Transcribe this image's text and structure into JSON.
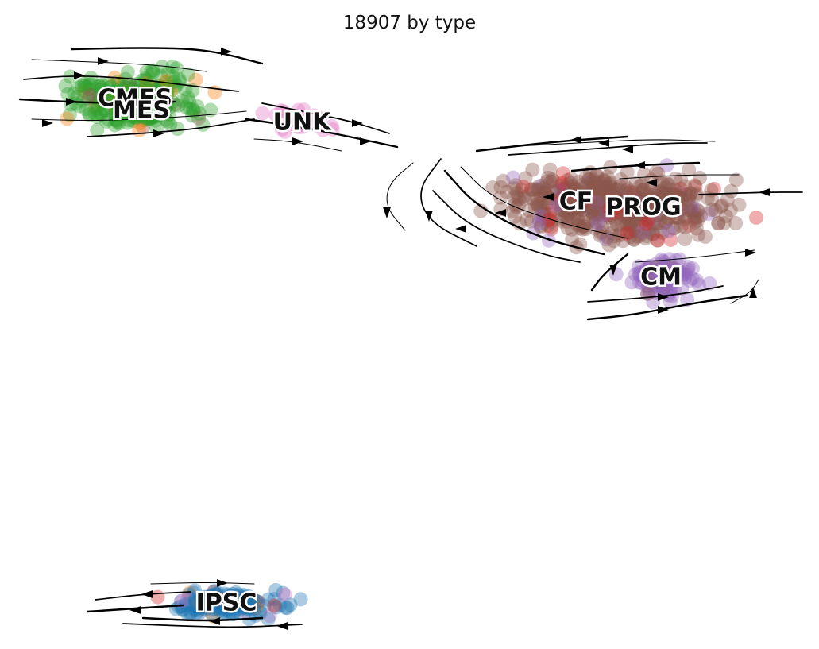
{
  "title": "18907 by type",
  "chart_data": {
    "type": "scatter",
    "title": "18907 by type",
    "subtype": "embedding scatter with velocity streamlines",
    "axes_visible": false,
    "grid": false,
    "legend": "on-data",
    "clusters": [
      {
        "name": "CMES",
        "color": "#2ca02c",
        "center": [
          170,
          125
        ],
        "extent": [
          130,
          55
        ],
        "mix_colors": [
          "#8c564b",
          "#ff7f0e"
        ]
      },
      {
        "name": "MES",
        "color": "#2ca02c",
        "center": [
          178,
          140
        ],
        "extent": [
          60,
          20
        ],
        "mix_colors": [
          "#8c564b"
        ]
      },
      {
        "name": "UNK",
        "color": "#e377c2",
        "center": [
          380,
          155
        ],
        "extent": [
          60,
          25
        ],
        "mix_colors": []
      },
      {
        "name": "CF",
        "color": "#8c564b",
        "center": [
          725,
          255
        ],
        "extent": [
          150,
          60
        ],
        "mix_colors": [
          "#d62728",
          "#9467bd"
        ]
      },
      {
        "name": "PROG",
        "color": "#8c564b",
        "center": [
          810,
          262
        ],
        "extent": [
          200,
          65
        ],
        "mix_colors": [
          "#d62728",
          "#9467bd"
        ]
      },
      {
        "name": "CM",
        "color": "#9467bd",
        "center": [
          832,
          350
        ],
        "extent": [
          75,
          40
        ],
        "mix_colors": [
          "#8c564b"
        ]
      },
      {
        "name": "IPSC",
        "color": "#1f77b4",
        "center": [
          285,
          760
        ],
        "extent": [
          115,
          28
        ],
        "mix_colors": [
          "#ff7f0e",
          "#e377c2",
          "#d62728"
        ]
      }
    ],
    "streamlines": [
      {
        "points": [
          [
            40,
            75
          ],
          [
            120,
            78
          ],
          [
            200,
            82
          ],
          [
            260,
            90
          ]
        ],
        "arrow": [
          [
            130,
            77
          ],
          "right"
        ]
      },
      {
        "points": [
          [
            30,
            100
          ],
          [
            90,
            95
          ],
          [
            160,
            98
          ],
          [
            240,
            108
          ],
          [
            300,
            115
          ]
        ],
        "arrow": [
          [
            100,
            95
          ],
          "right"
        ]
      },
      {
        "points": [
          [
            25,
            125
          ],
          [
            80,
            128
          ],
          [
            150,
            130
          ],
          [
            220,
            128
          ]
        ],
        "arrow": [
          [
            90,
            128
          ],
          "right"
        ]
      },
      {
        "points": [
          [
            40,
            150
          ],
          [
            110,
            152
          ],
          [
            180,
            150
          ],
          [
            260,
            145
          ],
          [
            310,
            140
          ]
        ],
        "arrow": [
          [
            60,
            155
          ],
          "right"
        ]
      },
      {
        "points": [
          [
            110,
            172
          ],
          [
            180,
            168
          ],
          [
            250,
            162
          ],
          [
            320,
            150
          ]
        ],
        "arrow": [
          [
            200,
            168
          ],
          "right"
        ]
      },
      {
        "points": [
          [
            90,
            62
          ],
          [
            180,
            60
          ],
          [
            260,
            62
          ],
          [
            330,
            80
          ]
        ],
        "arrow": [
          [
            285,
            65
          ],
          "right"
        ]
      },
      {
        "points": [
          [
            320,
            175
          ],
          [
            370,
            178
          ],
          [
            430,
            190
          ]
        ],
        "arrow": [
          [
            375,
            178
          ],
          "right"
        ]
      },
      {
        "points": [
          [
            330,
            130
          ],
          [
            380,
            140
          ],
          [
            440,
            152
          ],
          [
            490,
            168
          ]
        ],
        "arrow": [
          [
            450,
            155
          ],
          "right"
        ]
      },
      {
        "points": [
          [
            310,
            150
          ],
          [
            380,
            160
          ],
          [
            440,
            172
          ],
          [
            500,
            185
          ]
        ],
        "arrow": [
          [
            460,
            178
          ],
          "right"
        ]
      },
      {
        "points": [
          [
            520,
            205
          ],
          [
            490,
            230
          ],
          [
            485,
            260
          ],
          [
            510,
            290
          ]
        ],
        "arrow": [
          [
            487,
            268
          ],
          "down"
        ]
      },
      {
        "points": [
          [
            555,
            200
          ],
          [
            525,
            240
          ],
          [
            540,
            280
          ],
          [
            600,
            310
          ]
        ],
        "arrow": [
          [
            540,
            272
          ],
          "down"
        ]
      },
      {
        "points": [
          [
            600,
            190
          ],
          [
            700,
            178
          ],
          [
            790,
            172
          ]
        ],
        "arrow": [
          [
            725,
            176
          ],
          "left"
        ]
      },
      {
        "points": [
          [
            630,
            185
          ],
          [
            730,
            180
          ],
          [
            820,
            175
          ],
          [
            900,
            178
          ]
        ],
        "arrow": [
          [
            760,
            180
          ],
          "left"
        ]
      },
      {
        "points": [
          [
            640,
            195
          ],
          [
            740,
            188
          ],
          [
            840,
            180
          ],
          [
            890,
            180
          ]
        ],
        "arrow": [
          [
            790,
            188
          ],
          "left"
        ]
      },
      {
        "points": [
          [
            720,
            215
          ],
          [
            800,
            208
          ],
          [
            880,
            205
          ]
        ],
        "arrow": [
          [
            805,
            208
          ],
          "left"
        ]
      },
      {
        "points": [
          [
            780,
            225
          ],
          [
            860,
            220
          ],
          [
            930,
            220
          ]
        ],
        "arrow": [
          [
            820,
            230
          ],
          "left"
        ]
      },
      {
        "points": [
          [
            880,
            245
          ],
          [
            960,
            242
          ],
          [
            1010,
            242
          ]
        ],
        "arrow": [
          [
            962,
            242
          ],
          "left"
        ]
      },
      {
        "points": [
          [
            560,
            215
          ],
          [
            600,
            260
          ],
          [
            680,
            300
          ],
          [
            760,
            320
          ]
        ],
        "arrow": [
          [
            630,
            268
          ],
          "left"
        ]
      },
      {
        "points": [
          [
            580,
            210
          ],
          [
            620,
            250
          ],
          [
            700,
            280
          ],
          [
            790,
            300
          ]
        ],
        "arrow": [
          [
            690,
            248
          ],
          "left"
        ]
      },
      {
        "points": [
          [
            545,
            240
          ],
          [
            590,
            285
          ],
          [
            680,
            320
          ],
          [
            730,
            330
          ]
        ],
        "arrow": [
          [
            580,
            288
          ],
          "left"
        ]
      },
      {
        "points": [
          [
            790,
            320
          ],
          [
            760,
            345
          ],
          [
            745,
            365
          ]
        ],
        "arrow": [
          [
            772,
            340
          ],
          "down"
        ]
      },
      {
        "points": [
          [
            800,
            330
          ],
          [
            870,
            325
          ],
          [
            950,
            315
          ]
        ],
        "arrow": [
          [
            945,
            318
          ],
          "right"
        ]
      },
      {
        "points": [
          [
            740,
            380
          ],
          [
            800,
            376
          ],
          [
            860,
            370
          ],
          [
            910,
            360
          ]
        ],
        "arrow": [
          [
            835,
            374
          ],
          "right"
        ]
      },
      {
        "points": [
          [
            740,
            402
          ],
          [
            800,
            396
          ],
          [
            870,
            382
          ],
          [
            940,
            372
          ]
        ],
        "arrow": [
          [
            835,
            390
          ],
          "right"
        ]
      },
      {
        "points": [
          [
            920,
            382
          ],
          [
            945,
            368
          ],
          [
            955,
            352
          ]
        ],
        "arrow": [
          [
            948,
            368
          ],
          "up"
        ]
      },
      {
        "points": [
          [
            120,
            755
          ],
          [
            180,
            748
          ],
          [
            240,
            745
          ]
        ],
        "arrow": [
          [
            185,
            748
          ],
          "left"
        ]
      },
      {
        "points": [
          [
            110,
            770
          ],
          [
            170,
            766
          ],
          [
            230,
            762
          ]
        ],
        "arrow": [
          [
            170,
            768
          ],
          "left"
        ]
      },
      {
        "points": [
          [
            190,
            735
          ],
          [
            260,
            733
          ],
          [
            320,
            735
          ]
        ],
        "arrow": [
          [
            280,
            734
          ],
          "right"
        ]
      },
      {
        "points": [
          [
            155,
            785
          ],
          [
            230,
            788
          ],
          [
            300,
            790
          ],
          [
            380,
            786
          ]
        ],
        "arrow": [
          [
            355,
            788
          ],
          "left"
        ]
      },
      {
        "points": [
          [
            180,
            778
          ],
          [
            260,
            782
          ],
          [
            330,
            778
          ]
        ],
        "arrow": [
          [
            270,
            782
          ],
          "left"
        ]
      }
    ]
  }
}
